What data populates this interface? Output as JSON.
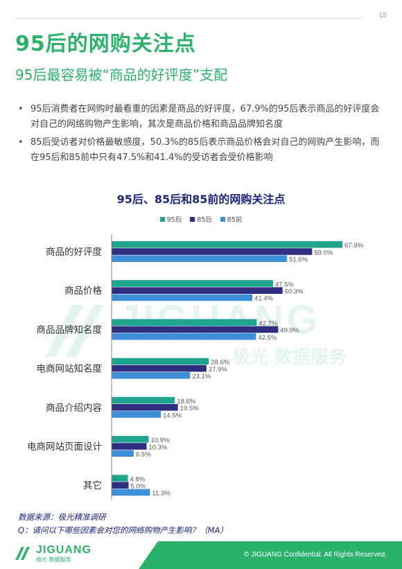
{
  "page_number": "15",
  "title": "95后的网购关注点",
  "subtitle": "95后最容易被“商品的好评度”支配",
  "bullets": [
    "95后消费者在网购时最看重的因素是商品的好评度，67.9%的95后表示商品的好评度会对自己的网络购物产生影响，其次是商品价格和商品品牌知名度",
    "85后受访者对价格最敏感度，50.3%的85后表示商品价格会对自己的网购产生影响，而在95后和85前中只有47.5%和41.4%的受访者会受价格影响"
  ],
  "colors": {
    "accent": "#2ab16a",
    "series": [
      "#1fa58e",
      "#312e81",
      "#3f8fd8"
    ]
  },
  "chart_data": {
    "type": "bar",
    "orientation": "horizontal",
    "title": "95后、85后和85前的网购关注点",
    "legend_position": "top",
    "categories": [
      "商品的好评度",
      "商品价格",
      "商品品牌知名度",
      "电商网站知名度",
      "商品介绍内容",
      "电商网站页面设计",
      "其它"
    ],
    "series": [
      {
        "name": "95后",
        "values": [
          67.9,
          47.5,
          42.7,
          28.6,
          18.6,
          10.9,
          4.8
        ]
      },
      {
        "name": "85后",
        "values": [
          59.0,
          50.3,
          49.0,
          27.9,
          19.5,
          10.3,
          5.0
        ]
      },
      {
        "name": "85前",
        "values": [
          51.6,
          41.4,
          42.5,
          23.1,
          14.5,
          6.5,
          11.3
        ]
      }
    ],
    "value_suffix": "%",
    "xlim": [
      0,
      70
    ],
    "grid": false
  },
  "watermark": {
    "brand": "JIGUANG",
    "tagline": "极光 数据服务"
  },
  "footer": {
    "source": "数据来源：极光精准调研",
    "question": "Q：请问以下哪些因素会对您的网络购物产生影响？（MA）",
    "confidential": "© JIGUANG Confidential. All Rights Reserved.",
    "logo_text": "JIGUANG",
    "logo_sub": "极光 数据服务"
  }
}
